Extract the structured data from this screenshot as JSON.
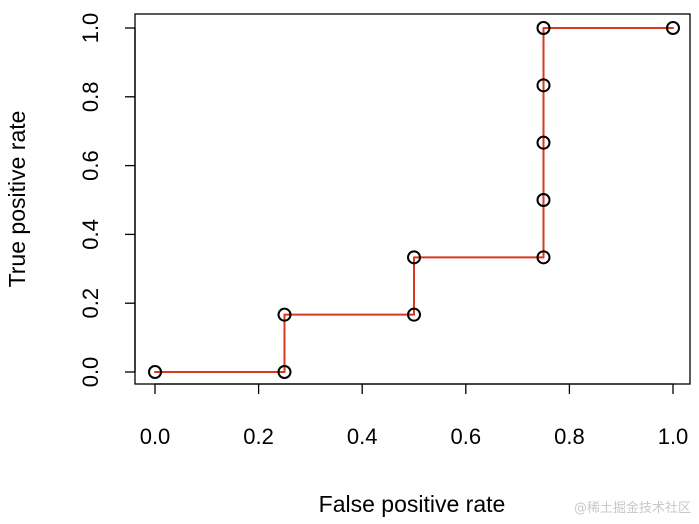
{
  "chart_data": {
    "type": "line",
    "subtype": "roc-step",
    "title": "",
    "xlabel": "False positive rate",
    "ylabel": "True positive rate",
    "xlim": [
      0,
      1
    ],
    "ylim": [
      0,
      1
    ],
    "xticks": [
      0.0,
      0.2,
      0.4,
      0.6,
      0.8,
      1.0
    ],
    "xtick_labels": [
      "0.0",
      "0.2",
      "0.4",
      "0.6",
      "0.8",
      "1.0"
    ],
    "yticks": [
      0.0,
      0.2,
      0.4,
      0.6,
      0.8,
      1.0
    ],
    "ytick_labels": [
      "0.0",
      "0.2",
      "0.4",
      "0.6",
      "0.8",
      "1.0"
    ],
    "grid": false,
    "series": [
      {
        "name": "ROC curve",
        "line_color": "#d73a1f",
        "marker": "open-circle",
        "marker_color": "#000000",
        "points": [
          {
            "x": 0.0,
            "y": 0.0
          },
          {
            "x": 0.25,
            "y": 0.0
          },
          {
            "x": 0.25,
            "y": 0.1667
          },
          {
            "x": 0.5,
            "y": 0.1667
          },
          {
            "x": 0.5,
            "y": 0.3333
          },
          {
            "x": 0.75,
            "y": 0.3333
          },
          {
            "x": 0.75,
            "y": 0.5
          },
          {
            "x": 0.75,
            "y": 0.6667
          },
          {
            "x": 0.75,
            "y": 0.8333
          },
          {
            "x": 0.75,
            "y": 1.0
          },
          {
            "x": 1.0,
            "y": 1.0
          }
        ]
      }
    ]
  },
  "watermark": "@稀土掘金技术社区"
}
